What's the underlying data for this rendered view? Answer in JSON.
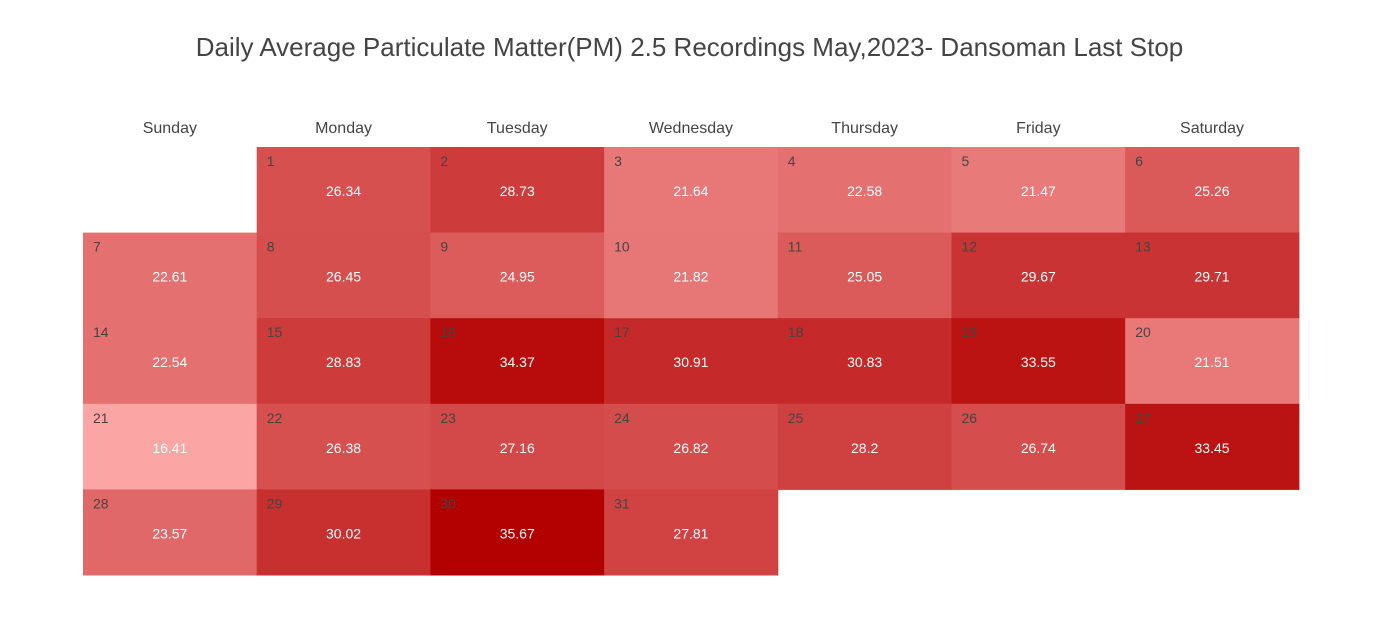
{
  "chart_data": {
    "type": "heatmap",
    "title": "Daily Average Particulate Matter(PM) 2.5 Recordings May,2023- Dansoman Last Stop",
    "weekdays": [
      "Sunday",
      "Monday",
      "Tuesday",
      "Wednesday",
      "Thursday",
      "Friday",
      "Saturday"
    ],
    "month_start_weekday": 1,
    "days": [
      {
        "day": 1,
        "value": 26.34
      },
      {
        "day": 2,
        "value": 28.73
      },
      {
        "day": 3,
        "value": 21.64
      },
      {
        "day": 4,
        "value": 22.58
      },
      {
        "day": 5,
        "value": 21.47
      },
      {
        "day": 6,
        "value": 25.26
      },
      {
        "day": 7,
        "value": 22.61
      },
      {
        "day": 8,
        "value": 26.45
      },
      {
        "day": 9,
        "value": 24.95
      },
      {
        "day": 10,
        "value": 21.82
      },
      {
        "day": 11,
        "value": 25.05
      },
      {
        "day": 12,
        "value": 29.67
      },
      {
        "day": 13,
        "value": 29.71
      },
      {
        "day": 14,
        "value": 22.54
      },
      {
        "day": 15,
        "value": 28.83
      },
      {
        "day": 16,
        "value": 34.37
      },
      {
        "day": 17,
        "value": 30.91
      },
      {
        "day": 18,
        "value": 30.83
      },
      {
        "day": 19,
        "value": 33.55
      },
      {
        "day": 20,
        "value": 21.51
      },
      {
        "day": 21,
        "value": 16.41
      },
      {
        "day": 22,
        "value": 26.38
      },
      {
        "day": 23,
        "value": 27.16
      },
      {
        "day": 24,
        "value": 26.82
      },
      {
        "day": 25,
        "value": 28.2
      },
      {
        "day": 26,
        "value": 26.74
      },
      {
        "day": 27,
        "value": 33.45
      },
      {
        "day": 28,
        "value": 23.57
      },
      {
        "day": 29,
        "value": 30.02
      },
      {
        "day": 30,
        "value": 35.67
      },
      {
        "day": 31,
        "value": 27.81
      }
    ],
    "color_scale": {
      "low": "#fca5a5",
      "high": "#b30000"
    }
  }
}
